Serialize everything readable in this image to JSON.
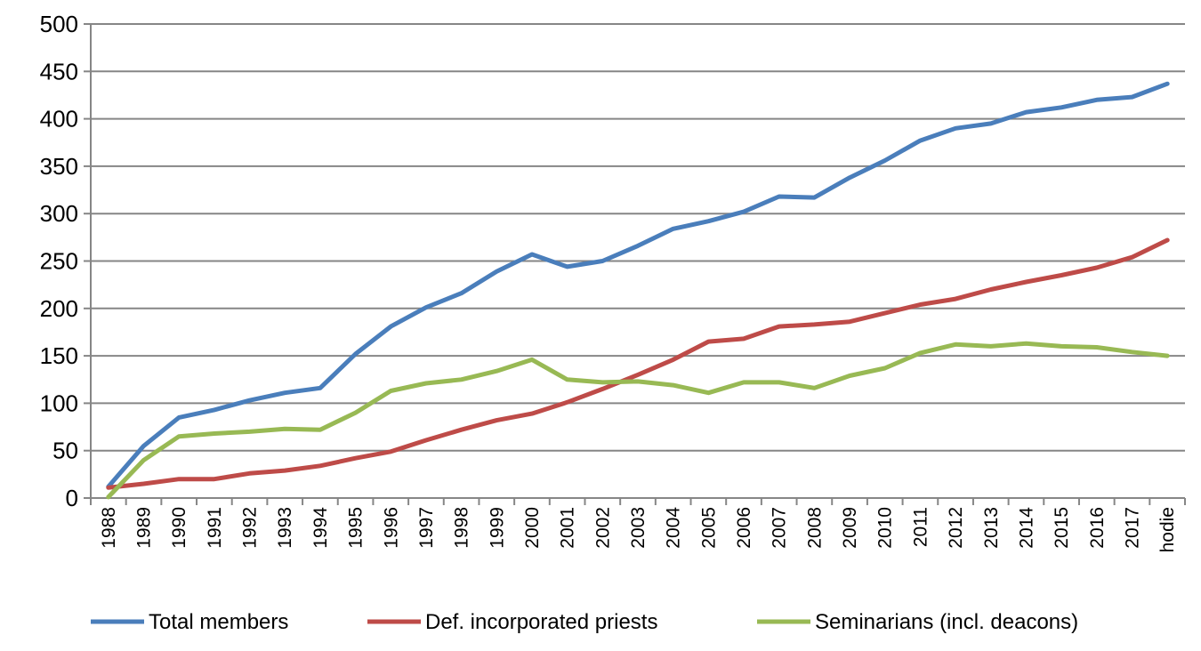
{
  "chart_data": {
    "type": "line",
    "title": "",
    "xlabel": "",
    "ylabel": "",
    "ylim": [
      0,
      500
    ],
    "yticks": [
      0,
      50,
      100,
      150,
      200,
      250,
      300,
      350,
      400,
      450,
      500
    ],
    "grid": "horizontal",
    "legend_position": "bottom",
    "categories": [
      "1988",
      "1989",
      "1990",
      "1991",
      "1992",
      "1993",
      "1994",
      "1995",
      "1996",
      "1997",
      "1998",
      "1999",
      "2000",
      "2001",
      "2002",
      "2003",
      "2004",
      "2005",
      "2006",
      "2007",
      "2008",
      "2009",
      "2010",
      "2011",
      "2012",
      "2013",
      "2014",
      "2015",
      "2016",
      "2017",
      "hodie"
    ],
    "series": [
      {
        "name": "Total members",
        "color": "#4a7ebb",
        "values": [
          12,
          55,
          85,
          93,
          103,
          111,
          116,
          152,
          181,
          201,
          216,
          239,
          257,
          244,
          250,
          266,
          284,
          292,
          302,
          318,
          317,
          338,
          356,
          377,
          390,
          395,
          407,
          412,
          420,
          423,
          437
        ]
      },
      {
        "name": "Def. incorporated priests",
        "color": "#be4b48",
        "values": [
          11,
          15,
          20,
          20,
          26,
          29,
          34,
          42,
          49,
          61,
          72,
          82,
          89,
          101,
          115,
          130,
          146,
          165,
          168,
          181,
          183,
          186,
          195,
          204,
          210,
          220,
          228,
          235,
          243,
          254,
          272
        ]
      },
      {
        "name": "Seminarians (incl. deacons)",
        "color": "#98b954",
        "values": [
          1,
          40,
          65,
          68,
          70,
          73,
          72,
          90,
          113,
          121,
          125,
          134,
          146,
          125,
          122,
          123,
          119,
          111,
          122,
          122,
          116,
          129,
          137,
          153,
          162,
          160,
          163,
          160,
          159,
          154,
          150
        ]
      }
    ]
  }
}
